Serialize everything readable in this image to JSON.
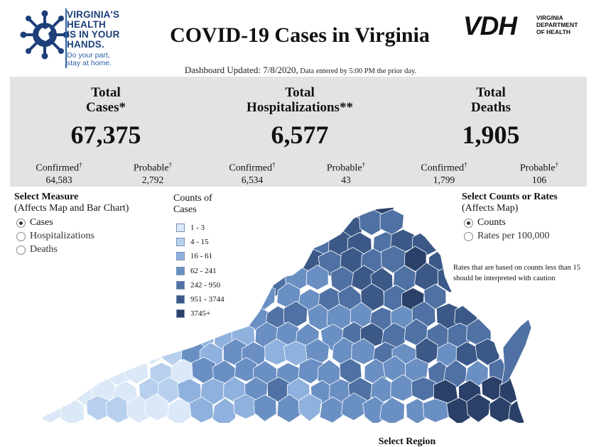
{
  "header": {
    "title": "COVID-19 Cases in Virginia",
    "updated_main": "Dashboard Updated: 7/8/2020,",
    "updated_note": " Data entered by 5:00 PM the prior day.",
    "left_logo": {
      "slogan_bold": "VIRGINIA'S\nHEALTH\nIS IN YOUR\nHANDS.",
      "slogan_small": "Do your part,\nstay at home."
    },
    "right_logo": {
      "mark": "VDH",
      "name": "VIRGINIA\nDEPARTMENT\nOF HEALTH"
    }
  },
  "summary": {
    "cases": {
      "label": "Total\nCases*",
      "value": "67,375",
      "confirmed_label": "Confirmed",
      "confirmed": "64,583",
      "probable_label": "Probable",
      "probable": "2,792"
    },
    "hospitalizations": {
      "label": "Total\nHospitalizations**",
      "value": "6,577",
      "confirmed_label": "Confirmed",
      "confirmed": "6,534",
      "probable_label": "Probable",
      "probable": "43"
    },
    "deaths": {
      "label": "Total\nDeaths",
      "value": "1,905",
      "confirmed_label": "Confirmed",
      "confirmed": "1,799",
      "probable_label": "Probable",
      "probable": "106"
    },
    "dagger": "†"
  },
  "measure": {
    "title": "Select Measure",
    "subtitle": "(Affects Map and Bar Chart)",
    "options": [
      "Cases",
      "Hospitalizations",
      "Deaths"
    ],
    "selected": "Cases"
  },
  "legend": {
    "title": "Counts of\nCases",
    "items": [
      {
        "label": "1 - 3",
        "color": "#dbe8f7"
      },
      {
        "label": "4 - 15",
        "color": "#b7d0ee"
      },
      {
        "label": "16 - 61",
        "color": "#8fb1dd"
      },
      {
        "label": "62 - 241",
        "color": "#6a8fc3"
      },
      {
        "label": "242 - 950",
        "color": "#4f71a4"
      },
      {
        "label": "951 - 3744",
        "color": "#3b5887"
      },
      {
        "label": "3745+",
        "color": "#2a4068"
      }
    ]
  },
  "counts_control": {
    "title": "Select Counts or Rates",
    "subtitle": "(Affects Map)",
    "options": [
      "Counts",
      "Rates per 100,000"
    ],
    "selected": "Counts",
    "note": "Rates that are based on counts less than 15 should be interpreted with caution"
  },
  "footer": {
    "select_region": "Select Region"
  },
  "colors": {
    "panel": "#e3e3e3",
    "brand_blue": "#1d3f7a"
  }
}
